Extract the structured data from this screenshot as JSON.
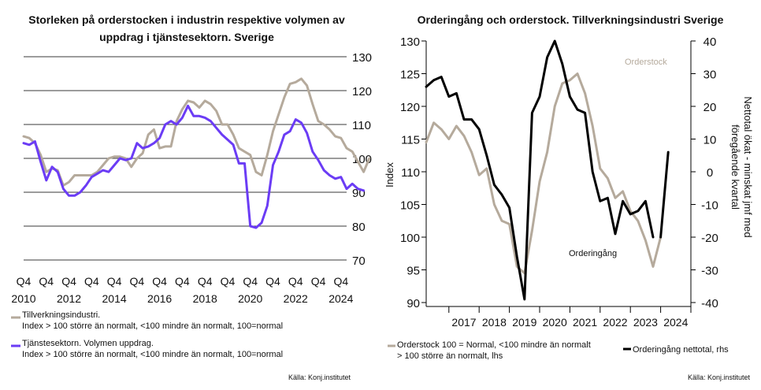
{
  "chart_data": [
    {
      "type": "line",
      "title_lines": [
        "Storleken på orderstocken i industrin respektive volymen av",
        "uppdrag i tjänstesektorn. Sverige"
      ],
      "y_ticks": [
        "70",
        "80",
        "90",
        "100",
        "110",
        "120",
        "130"
      ],
      "ylim": [
        70,
        130
      ],
      "x_ticks_q": [
        "Q4",
        "Q4",
        "Q4",
        "Q4",
        "Q4",
        "Q4",
        "Q4",
        "Q4",
        "Q4",
        "Q4",
        "Q4",
        "Q4",
        "Q4",
        "Q4",
        "Q4"
      ],
      "x_ticks_year": [
        "2010",
        "2012",
        "2014",
        "2016",
        "2018",
        "2020",
        "2022",
        "2024"
      ],
      "grid": true,
      "series": [
        {
          "legend_line1": "Tillverkningsindustri.",
          "legend_line2": "Index > 100 större än normalt, <100 mindre än normalt, 100=normal",
          "color": "#b5aa9c",
          "x_start": 2010.75,
          "step": 0.25,
          "values": [
            106.5,
            106,
            104.5,
            101,
            96,
            97,
            96.5,
            92,
            93,
            95,
            95,
            95,
            95,
            96,
            98,
            100,
            100.5,
            100.5,
            100,
            97.5,
            100,
            101.5,
            107,
            108.5,
            103,
            103.5,
            103.5,
            111,
            114.5,
            117,
            116.5,
            115,
            117,
            116,
            114,
            110,
            110,
            107,
            103,
            102,
            101,
            96,
            95,
            101,
            108,
            113,
            118,
            122,
            122.5,
            123.5,
            121.5,
            116,
            111,
            110,
            108.5,
            106.5,
            106,
            103,
            102,
            99,
            96,
            100
          ]
        },
        {
          "legend_line1": "Tjänstesektorn. Volymen uppdrag.",
          "legend_line2": "Index > 100 större än normalt, <100 mindre än normalt, 100=normal",
          "color": "#6b3cf5",
          "x_start": 2010.75,
          "step": 0.25,
          "values": [
            104.5,
            104,
            105,
            99,
            93.5,
            97.5,
            96,
            91,
            89,
            89,
            90,
            92,
            94.5,
            95.5,
            96.5,
            96,
            98,
            100,
            99.5,
            100,
            104.5,
            103,
            103.5,
            104.5,
            106,
            110,
            111,
            110,
            112,
            115.5,
            112.5,
            112.5,
            112,
            111,
            109,
            107,
            105.5,
            104,
            98.5,
            98.5,
            80,
            79.5,
            81,
            86,
            98,
            102,
            107,
            108,
            111.5,
            110.5,
            107.5,
            102,
            99.5,
            96.5,
            95,
            94,
            94.5,
            91,
            92.5,
            91,
            90.5
          ]
        }
      ],
      "source": "Källa: Konj.institutet"
    },
    {
      "type": "line",
      "title": "Orderingång och orderstock. Tillverkningsindustri Sverige",
      "ylabel": "Index",
      "y2label_lines": [
        "Nettotal ökat - minskat jmf med",
        "föregående kvartal"
      ],
      "ylim": [
        90,
        130
      ],
      "y2lim": [
        -40,
        40
      ],
      "y_ticks": [
        "90",
        "95",
        "100",
        "105",
        "110",
        "115",
        "120",
        "125",
        "130"
      ],
      "y2_ticks": [
        "-40",
        "-30",
        "-20",
        "-10",
        "0",
        "10",
        "20",
        "30",
        "40"
      ],
      "x_ticks": [
        "2017",
        "2018",
        "2019",
        "2020",
        "2021",
        "2022",
        "2023",
        "2024"
      ],
      "annotations": [
        "Orderstock",
        "Orderingång"
      ],
      "series": [
        {
          "legend_line1": "Orderstock 100 =  Normal, <100 mindre än normalt",
          "legend_line2": "> 100 större än normalt, lhs",
          "axis": "left",
          "color": "#b5aa9c",
          "x_start": 2016.0,
          "step": 0.25,
          "values": [
            114.5,
            117.5,
            116.5,
            115,
            117,
            115.5,
            113,
            109.5,
            110.5,
            105,
            102.5,
            102,
            95.5,
            94.5,
            101,
            108.5,
            113,
            120,
            123.5,
            124,
            125,
            122,
            117,
            110.5,
            109,
            106,
            107,
            104,
            102.5,
            99.5,
            95.5,
            100
          ]
        },
        {
          "legend_line1": "Orderingång nettotal, rhs",
          "axis": "right",
          "color": "#000000",
          "segments": [
            {
              "x_start": 2016.0,
              "step": 0.25,
              "values": [
                26,
                28,
                29,
                23,
                24,
                16,
                16,
                13,
                5,
                -4,
                -7,
                -11,
                -26,
                -39,
                18,
                23,
                35,
                40,
                33,
                23,
                19,
                18,
                0,
                -9,
                -8,
                -19,
                -9,
                -13,
                -12,
                -9,
                -20
              ]
            },
            {
              "x_start": 2023.75,
              "step": 0.25,
              "values": [
                -20,
                6
              ]
            }
          ]
        }
      ],
      "source": "Källa: Konj.institutet"
    }
  ]
}
